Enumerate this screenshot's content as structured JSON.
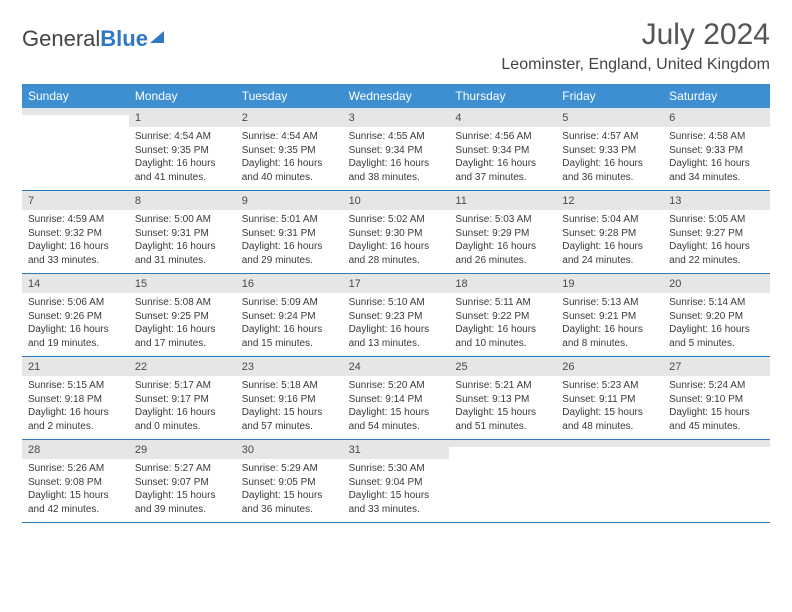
{
  "logo": {
    "text1": "General",
    "text2": "Blue"
  },
  "title": "July 2024",
  "location": "Leominster, England, United Kingdom",
  "day_names": [
    "Sunday",
    "Monday",
    "Tuesday",
    "Wednesday",
    "Thursday",
    "Friday",
    "Saturday"
  ],
  "colors": {
    "header_bg": "#3d8fd1",
    "header_fg": "#ffffff",
    "date_bg": "#e6e6e6",
    "rule": "#2f78c2",
    "logo_blue": "#2f78c2"
  },
  "weeks": [
    [
      {
        "date": "",
        "sunrise": "",
        "sunset": "",
        "daylight": ""
      },
      {
        "date": "1",
        "sunrise": "Sunrise: 4:54 AM",
        "sunset": "Sunset: 9:35 PM",
        "daylight": "Daylight: 16 hours and 41 minutes."
      },
      {
        "date": "2",
        "sunrise": "Sunrise: 4:54 AM",
        "sunset": "Sunset: 9:35 PM",
        "daylight": "Daylight: 16 hours and 40 minutes."
      },
      {
        "date": "3",
        "sunrise": "Sunrise: 4:55 AM",
        "sunset": "Sunset: 9:34 PM",
        "daylight": "Daylight: 16 hours and 38 minutes."
      },
      {
        "date": "4",
        "sunrise": "Sunrise: 4:56 AM",
        "sunset": "Sunset: 9:34 PM",
        "daylight": "Daylight: 16 hours and 37 minutes."
      },
      {
        "date": "5",
        "sunrise": "Sunrise: 4:57 AM",
        "sunset": "Sunset: 9:33 PM",
        "daylight": "Daylight: 16 hours and 36 minutes."
      },
      {
        "date": "6",
        "sunrise": "Sunrise: 4:58 AM",
        "sunset": "Sunset: 9:33 PM",
        "daylight": "Daylight: 16 hours and 34 minutes."
      }
    ],
    [
      {
        "date": "7",
        "sunrise": "Sunrise: 4:59 AM",
        "sunset": "Sunset: 9:32 PM",
        "daylight": "Daylight: 16 hours and 33 minutes."
      },
      {
        "date": "8",
        "sunrise": "Sunrise: 5:00 AM",
        "sunset": "Sunset: 9:31 PM",
        "daylight": "Daylight: 16 hours and 31 minutes."
      },
      {
        "date": "9",
        "sunrise": "Sunrise: 5:01 AM",
        "sunset": "Sunset: 9:31 PM",
        "daylight": "Daylight: 16 hours and 29 minutes."
      },
      {
        "date": "10",
        "sunrise": "Sunrise: 5:02 AM",
        "sunset": "Sunset: 9:30 PM",
        "daylight": "Daylight: 16 hours and 28 minutes."
      },
      {
        "date": "11",
        "sunrise": "Sunrise: 5:03 AM",
        "sunset": "Sunset: 9:29 PM",
        "daylight": "Daylight: 16 hours and 26 minutes."
      },
      {
        "date": "12",
        "sunrise": "Sunrise: 5:04 AM",
        "sunset": "Sunset: 9:28 PM",
        "daylight": "Daylight: 16 hours and 24 minutes."
      },
      {
        "date": "13",
        "sunrise": "Sunrise: 5:05 AM",
        "sunset": "Sunset: 9:27 PM",
        "daylight": "Daylight: 16 hours and 22 minutes."
      }
    ],
    [
      {
        "date": "14",
        "sunrise": "Sunrise: 5:06 AM",
        "sunset": "Sunset: 9:26 PM",
        "daylight": "Daylight: 16 hours and 19 minutes."
      },
      {
        "date": "15",
        "sunrise": "Sunrise: 5:08 AM",
        "sunset": "Sunset: 9:25 PM",
        "daylight": "Daylight: 16 hours and 17 minutes."
      },
      {
        "date": "16",
        "sunrise": "Sunrise: 5:09 AM",
        "sunset": "Sunset: 9:24 PM",
        "daylight": "Daylight: 16 hours and 15 minutes."
      },
      {
        "date": "17",
        "sunrise": "Sunrise: 5:10 AM",
        "sunset": "Sunset: 9:23 PM",
        "daylight": "Daylight: 16 hours and 13 minutes."
      },
      {
        "date": "18",
        "sunrise": "Sunrise: 5:11 AM",
        "sunset": "Sunset: 9:22 PM",
        "daylight": "Daylight: 16 hours and 10 minutes."
      },
      {
        "date": "19",
        "sunrise": "Sunrise: 5:13 AM",
        "sunset": "Sunset: 9:21 PM",
        "daylight": "Daylight: 16 hours and 8 minutes."
      },
      {
        "date": "20",
        "sunrise": "Sunrise: 5:14 AM",
        "sunset": "Sunset: 9:20 PM",
        "daylight": "Daylight: 16 hours and 5 minutes."
      }
    ],
    [
      {
        "date": "21",
        "sunrise": "Sunrise: 5:15 AM",
        "sunset": "Sunset: 9:18 PM",
        "daylight": "Daylight: 16 hours and 2 minutes."
      },
      {
        "date": "22",
        "sunrise": "Sunrise: 5:17 AM",
        "sunset": "Sunset: 9:17 PM",
        "daylight": "Daylight: 16 hours and 0 minutes."
      },
      {
        "date": "23",
        "sunrise": "Sunrise: 5:18 AM",
        "sunset": "Sunset: 9:16 PM",
        "daylight": "Daylight: 15 hours and 57 minutes."
      },
      {
        "date": "24",
        "sunrise": "Sunrise: 5:20 AM",
        "sunset": "Sunset: 9:14 PM",
        "daylight": "Daylight: 15 hours and 54 minutes."
      },
      {
        "date": "25",
        "sunrise": "Sunrise: 5:21 AM",
        "sunset": "Sunset: 9:13 PM",
        "daylight": "Daylight: 15 hours and 51 minutes."
      },
      {
        "date": "26",
        "sunrise": "Sunrise: 5:23 AM",
        "sunset": "Sunset: 9:11 PM",
        "daylight": "Daylight: 15 hours and 48 minutes."
      },
      {
        "date": "27",
        "sunrise": "Sunrise: 5:24 AM",
        "sunset": "Sunset: 9:10 PM",
        "daylight": "Daylight: 15 hours and 45 minutes."
      }
    ],
    [
      {
        "date": "28",
        "sunrise": "Sunrise: 5:26 AM",
        "sunset": "Sunset: 9:08 PM",
        "daylight": "Daylight: 15 hours and 42 minutes."
      },
      {
        "date": "29",
        "sunrise": "Sunrise: 5:27 AM",
        "sunset": "Sunset: 9:07 PM",
        "daylight": "Daylight: 15 hours and 39 minutes."
      },
      {
        "date": "30",
        "sunrise": "Sunrise: 5:29 AM",
        "sunset": "Sunset: 9:05 PM",
        "daylight": "Daylight: 15 hours and 36 minutes."
      },
      {
        "date": "31",
        "sunrise": "Sunrise: 5:30 AM",
        "sunset": "Sunset: 9:04 PM",
        "daylight": "Daylight: 15 hours and 33 minutes."
      },
      {
        "date": "",
        "sunrise": "",
        "sunset": "",
        "daylight": ""
      },
      {
        "date": "",
        "sunrise": "",
        "sunset": "",
        "daylight": ""
      },
      {
        "date": "",
        "sunrise": "",
        "sunset": "",
        "daylight": ""
      }
    ]
  ]
}
